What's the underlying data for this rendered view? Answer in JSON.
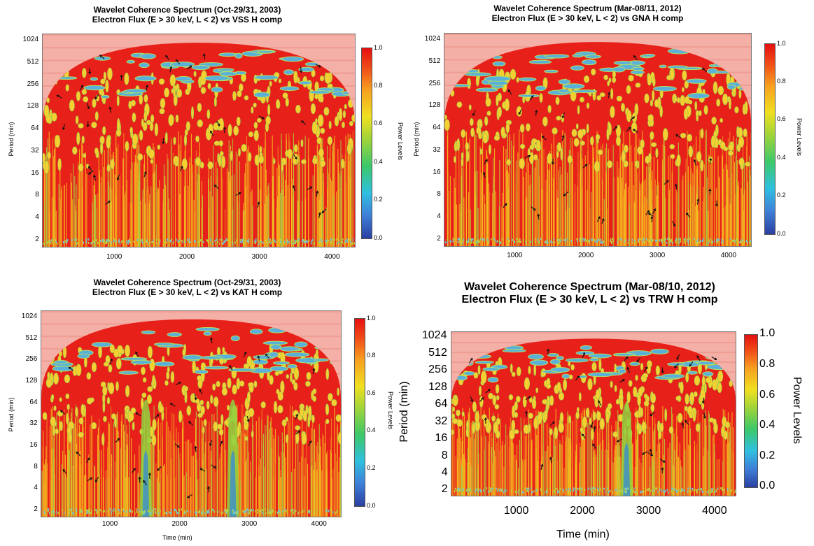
{
  "colorbar": {
    "label": "Power Levels",
    "ticks": [
      "1.0",
      "0.8",
      "0.6",
      "0.4",
      "0.2",
      "0.0"
    ],
    "colors": [
      "#2a3fa0",
      "#3f7fd8",
      "#2fc0e0",
      "#3cc86a",
      "#9ed43a",
      "#f0e020",
      "#f7a020",
      "#f04a18",
      "#e51010"
    ]
  },
  "panels": [
    {
      "title_line1": "Wavelet Coherence Spectrum (Oct-29/31, 2003)",
      "title_line2": "Electron Flux (E > 30 keV, L < 2) vs VSS H comp",
      "ylabel": "Period (min)",
      "xlabel": "",
      "yticks": [
        "1024",
        "512",
        "256",
        "128",
        "64",
        "32",
        "16",
        "8",
        "4",
        "2"
      ],
      "xticks": [
        "1000",
        "2000",
        "3000",
        "4000"
      ]
    },
    {
      "title_line1": "Wavelet Coherence Spectrum (Mar-08/11, 2012)",
      "title_line2": "Electron Flux (E > 30 keV, L < 2) vs GNA H comp",
      "ylabel": "Period (min)",
      "xlabel": "",
      "yticks": [
        "1024",
        "512",
        "256",
        "128",
        "64",
        "32",
        "16",
        "8",
        "4",
        "2"
      ],
      "xticks": [
        "1000",
        "2000",
        "3000",
        "4000"
      ]
    },
    {
      "title_line1": "Wavelet Coherence Spectrum (Oct-29/31, 2003)",
      "title_line2": "Electron Flux (E > 30 keV, L < 2) vs KAT H comp",
      "ylabel": "Period (min)",
      "xlabel": "Time (min)",
      "yticks": [
        "1024",
        "512",
        "256",
        "128",
        "64",
        "32",
        "16",
        "8",
        "4",
        "2"
      ],
      "xticks": [
        "1000",
        "2000",
        "3000",
        "4000"
      ]
    },
    {
      "title_line1": "Wavelet Coherence Spectrum (Mar-08/10, 2012)",
      "title_line2": "Electron Flux (E > 30 keV, L < 2) vs TRW H comp",
      "ylabel": "Period (min)",
      "xlabel": "Time (min)",
      "yticks": [
        "1024",
        "512",
        "256",
        "128",
        "64",
        "32",
        "16",
        "8",
        "4",
        "2"
      ],
      "xticks": [
        "1000",
        "2000",
        "3000",
        "4000"
      ]
    }
  ],
  "chart_data": [
    {
      "type": "heatmap",
      "title": "Wavelet Coherence Spectrum (Oct-29/31, 2003)",
      "subtitle": "Electron Flux (E > 30 keV, L < 2) vs VSS H comp",
      "xlabel": "",
      "ylabel": "Period (min)",
      "y_scale": "log2",
      "ylim": [
        2,
        1024
      ],
      "xlim": [
        0,
        4300
      ],
      "colorbar_label": "Power Levels",
      "colorbar_range": [
        0.0,
        1.0
      ]
    },
    {
      "type": "heatmap",
      "title": "Wavelet Coherence Spectrum (Mar-08/11, 2012)",
      "subtitle": "Electron Flux (E > 30 keV, L < 2) vs GNA H comp",
      "xlabel": "",
      "ylabel": "Period (min)",
      "y_scale": "log2",
      "ylim": [
        2,
        1024
      ],
      "xlim": [
        0,
        4300
      ],
      "colorbar_label": "Power Levels",
      "colorbar_range": [
        0.0,
        1.0
      ]
    },
    {
      "type": "heatmap",
      "title": "Wavelet Coherence Spectrum (Oct-29/31, 2003)",
      "subtitle": "Electron Flux (E > 30 keV, L < 2) vs KAT H comp",
      "xlabel": "Time (min)",
      "ylabel": "Period (min)",
      "y_scale": "log2",
      "ylim": [
        2,
        1024
      ],
      "xlim": [
        0,
        4300
      ],
      "colorbar_label": "Power Levels",
      "colorbar_range": [
        0.0,
        1.0
      ],
      "low_coherence_bands_x": [
        1500,
        2750
      ]
    },
    {
      "type": "heatmap",
      "title": "Wavelet Coherence Spectrum (Mar-08/10, 2012)",
      "subtitle": "Electron Flux (E > 30 keV, L < 2) vs TRW H comp",
      "xlabel": "Time (min)",
      "ylabel": "Period (min)",
      "y_scale": "log2",
      "ylim": [
        2,
        1024
      ],
      "xlim": [
        0,
        4300
      ],
      "colorbar_label": "Power Levels",
      "colorbar_range": [
        0.0,
        1.0
      ],
      "low_coherence_bands_x": [
        2650
      ]
    }
  ]
}
